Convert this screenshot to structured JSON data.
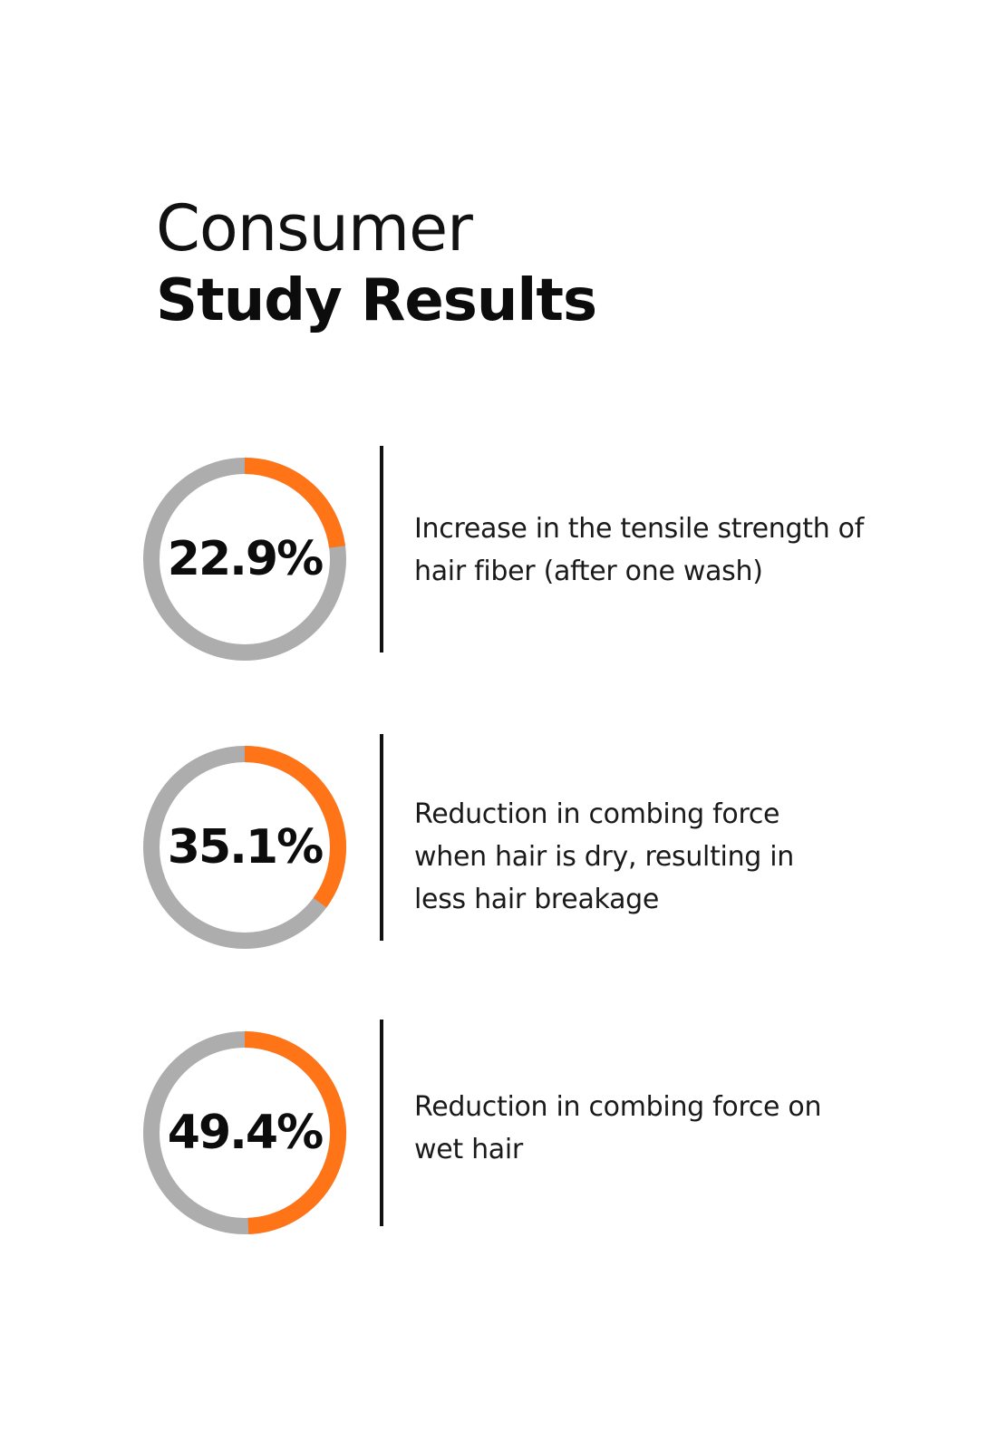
{
  "header": {
    "title_line1": "Consumer",
    "title_line2": "Study Results"
  },
  "colors": {
    "accent": "#ff7417",
    "track": "#adadad",
    "text": "#111111",
    "divider": "#111111"
  },
  "chart_data": [
    {
      "type": "pie",
      "value": 22.9,
      "value_label": "22.9%",
      "description_lines": [
        "Increase in the tensile strength of",
        "hair fiber (after one wash)"
      ]
    },
    {
      "type": "pie",
      "value": 35.1,
      "value_label": "35.1%",
      "description_lines": [
        "Reduction in combing force",
        "when hair is dry, resulting in",
        "less hair breakage"
      ]
    },
    {
      "type": "pie",
      "value": 49.4,
      "value_label": "49.4%",
      "description_lines": [
        "Reduction in combing force on",
        "wet hair"
      ]
    }
  ]
}
